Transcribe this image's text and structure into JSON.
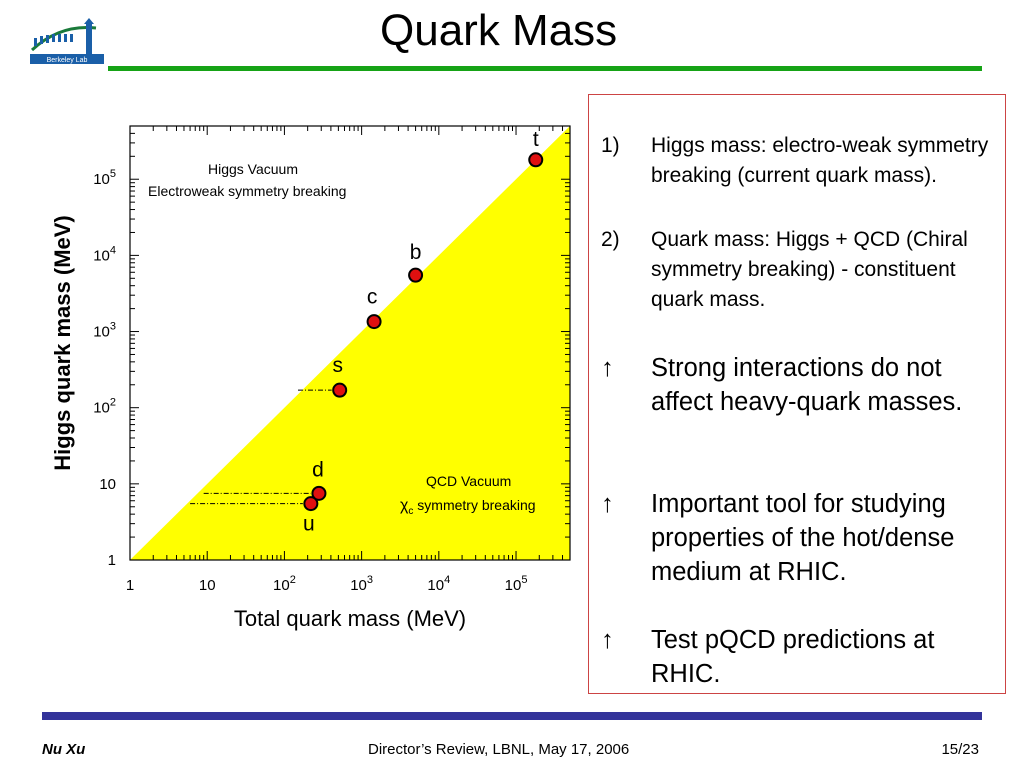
{
  "slide": {
    "title": "Quark Mass",
    "logo_text": "Berkeley Lab"
  },
  "bullets": [
    {
      "marker": "1)",
      "text": "Higgs mass: electro-weak symmetry breaking (current quark mass)."
    },
    {
      "marker": "2)",
      "text": "Quark mass: Higgs + QCD (Chiral symmetry breaking) - constituent quark mass."
    },
    {
      "marker": "↑",
      "text": "Strong interactions do not affect heavy-quark masses."
    },
    {
      "marker": "↑",
      "text": "Important tool for studying properties of the hot/dense medium at RHIC."
    },
    {
      "marker": "↑",
      "text": "Test pQCD predictions at RHIC."
    }
  ],
  "footer": {
    "author": "Nu Xu",
    "center": "Director’s Review, LBNL, May 17,  2006",
    "page": "15/23"
  },
  "chart_data": {
    "type": "scatter",
    "xscale": "log",
    "yscale": "log",
    "xlim": [
      1,
      500000
    ],
    "ylim": [
      1,
      500000
    ],
    "xlabel": "Total quark mass (MeV)",
    "ylabel": "Higgs quark mass (MeV)",
    "xticks": [
      {
        "value": 1,
        "base": "1",
        "exp": ""
      },
      {
        "value": 10,
        "base": "10",
        "exp": ""
      },
      {
        "value": 100,
        "base": "10",
        "exp": "2"
      },
      {
        "value": 1000,
        "base": "10",
        "exp": "3"
      },
      {
        "value": 10000,
        "base": "10",
        "exp": "4"
      },
      {
        "value": 100000,
        "base": "10",
        "exp": "5"
      }
    ],
    "yticks": [
      {
        "value": 1,
        "base": "1",
        "exp": ""
      },
      {
        "value": 10,
        "base": "10",
        "exp": ""
      },
      {
        "value": 100,
        "base": "10",
        "exp": "2"
      },
      {
        "value": 1000,
        "base": "10",
        "exp": "3"
      },
      {
        "value": 10000,
        "base": "10",
        "exp": "4"
      },
      {
        "value": 100000,
        "base": "10",
        "exp": "5"
      }
    ],
    "region_colors": {
      "qcd": "#ffff00",
      "point": "#e01010"
    },
    "points": [
      {
        "label": "u",
        "x": 220,
        "y": 5.5
      },
      {
        "label": "d",
        "x": 280,
        "y": 7.5
      },
      {
        "label": "s",
        "x": 520,
        "y": 170
      },
      {
        "label": "c",
        "x": 1450,
        "y": 1350
      },
      {
        "label": "b",
        "x": 5000,
        "y": 5500
      },
      {
        "label": "t",
        "x": 180000,
        "y": 180000
      }
    ],
    "region_labels": {
      "higgs_line1": "Higgs Vacuum",
      "higgs_line2": "Electroweak symmetry breaking",
      "qcd_line1": "QCD Vacuum",
      "qcd_line2_symbol": "χ",
      "qcd_line2_sub": "c",
      "qcd_line2_rest": " symmetry breaking"
    }
  }
}
